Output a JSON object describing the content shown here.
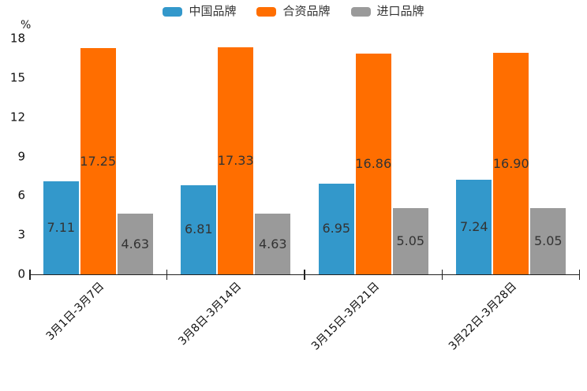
{
  "chart_data": {
    "type": "bar",
    "title": "",
    "y_unit": "%",
    "categories": [
      "3月1日-3月7日",
      "3月8日-3月14日",
      "3月15日-3月21日",
      "3月22日-3月28日"
    ],
    "series": [
      {
        "name": "中国品牌",
        "color": "#3398cb",
        "values": [
          7.11,
          6.81,
          6.95,
          7.24
        ]
      },
      {
        "name": "合资品牌",
        "color": "#ff6e00",
        "values": [
          17.25,
          17.33,
          16.86,
          16.9
        ]
      },
      {
        "name": "进口品牌",
        "color": "#9a9a9a",
        "values": [
          4.63,
          4.63,
          5.05,
          5.05
        ]
      }
    ],
    "ylim": [
      0,
      18
    ],
    "yticks": [
      0,
      3,
      6,
      9,
      12,
      15,
      18
    ],
    "grid": false,
    "legend_position": "top-center",
    "x_label_rotation": 45,
    "value_label_decimals": 2,
    "colors": {
      "value_label_text": "#333333",
      "axis": "#222222",
      "tick_label_text": "#111111",
      "background": "#ffffff"
    }
  }
}
